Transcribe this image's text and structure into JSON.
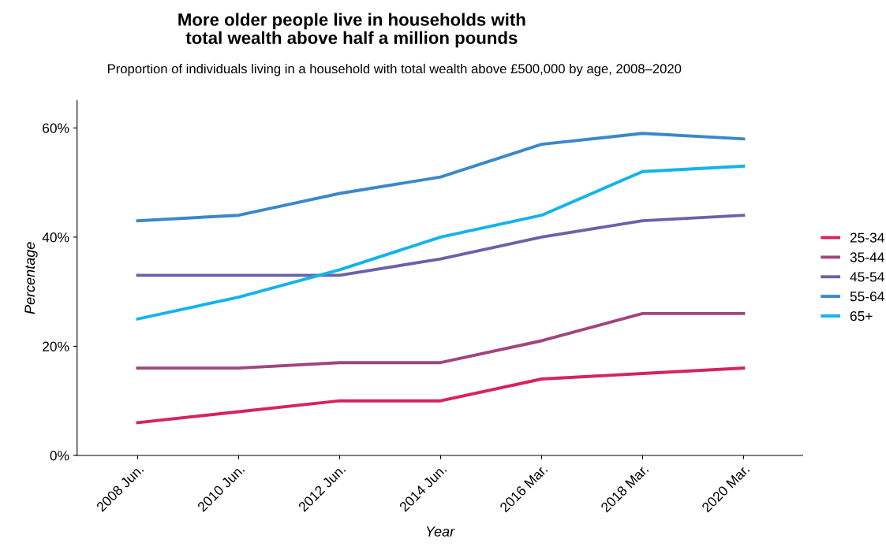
{
  "chart_data": {
    "type": "line",
    "title": "More older people live in households with\ntotal wealth above half a million pounds",
    "subtitle": "Proportion of individuals living in a household with total wealth above £500,000 by age, 2008–2020",
    "xlabel": "Year",
    "ylabel": "Percentage",
    "categories": [
      "2008 Jun.",
      "2010 Jun.",
      "2012 Jun.",
      "2014 Jun.",
      "2016 Mar.",
      "2018 Mar.",
      "2020 Mar."
    ],
    "series": [
      {
        "name": "25-34",
        "color": "#d6245b",
        "values": [
          6,
          8,
          10,
          10,
          14,
          15,
          16
        ]
      },
      {
        "name": "35-44",
        "color": "#a0457e",
        "values": [
          16,
          16,
          17,
          17,
          21,
          26,
          26
        ]
      },
      {
        "name": "45-54",
        "color": "#6a62a8",
        "values": [
          33,
          33,
          33,
          36,
          40,
          43,
          44
        ]
      },
      {
        "name": "55-64",
        "color": "#3a88c9",
        "values": [
          43,
          44,
          48,
          51,
          57,
          59,
          58
        ]
      },
      {
        "name": "65+",
        "color": "#12b4ea",
        "values": [
          25,
          29,
          34,
          40,
          44,
          52,
          53
        ]
      }
    ],
    "ylim": [
      0,
      65
    ],
    "yticks": [
      {
        "value": 0,
        "label": "0%"
      },
      {
        "value": 20,
        "label": "20%"
      },
      {
        "value": 40,
        "label": "40%"
      },
      {
        "value": 60,
        "label": "60%"
      }
    ],
    "grid": false,
    "legend": "right",
    "marker": "none",
    "line_style": "solid"
  }
}
